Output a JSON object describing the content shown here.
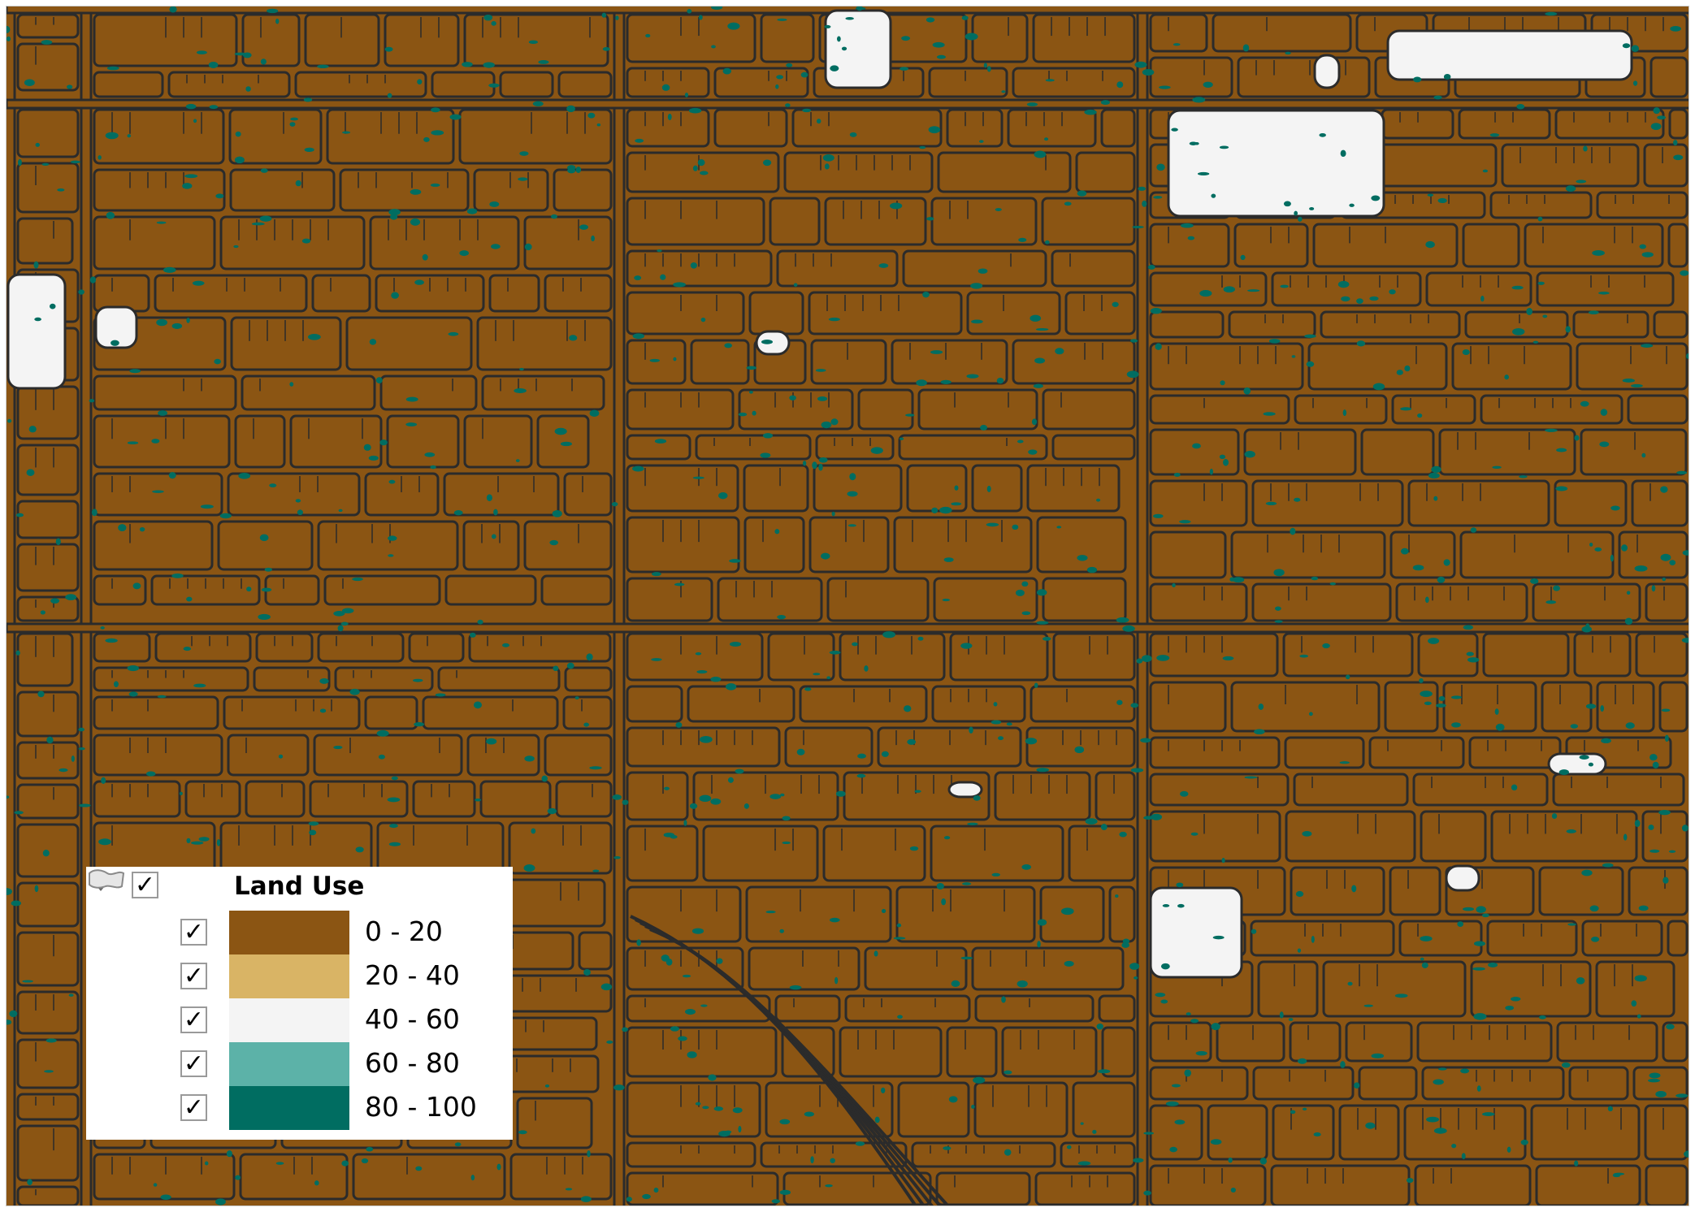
{
  "layer": {
    "title": "Land Use",
    "checked": true,
    "icon": "polygon-layer-icon"
  },
  "classes": [
    {
      "label": "0 - 20",
      "color": "#8b5513",
      "checked": true
    },
    {
      "label": "20 - 40",
      "color": "#d9b465",
      "checked": true
    },
    {
      "label": "40 - 60",
      "color": "#f4f4f4",
      "checked": true
    },
    {
      "label": "60 - 80",
      "color": "#5cb2a8",
      "checked": true
    },
    {
      "label": "80 - 100",
      "color": "#006d61",
      "checked": true
    }
  ],
  "check_glyph": "✓",
  "map": {
    "outline_color": "#2b2b2b",
    "background_class": "0 - 20"
  }
}
